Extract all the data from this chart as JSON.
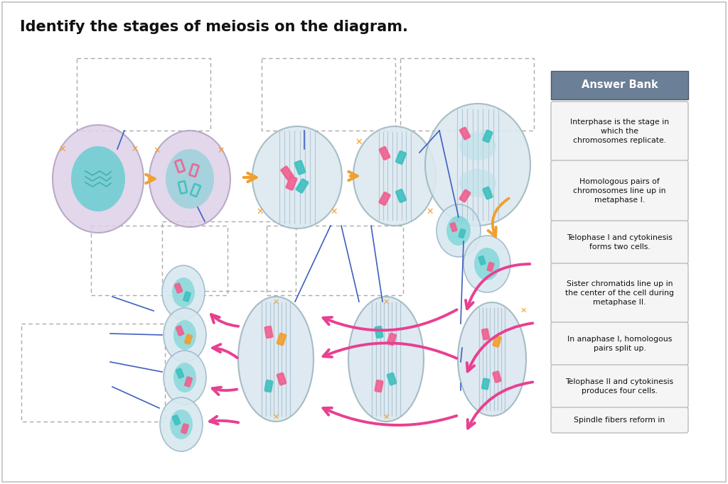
{
  "title": "Identify the stages of meiosis on the diagram.",
  "title_fontsize": 15,
  "bg_color": "#ffffff",
  "answer_bank_bg": "#6b7f96",
  "answer_bank_title": "Answer Bank",
  "answer_items": [
    "Interphase is the stage in\nwhich the\nchromosomes replicate.",
    "Homologous pairs of\nchromosomes line up in\nmetaphase I.",
    "Telophase I and cytokinesis\nforms two cells.",
    "Sister chromatids line up in\nthe center of the cell during\nmetaphase II.",
    "In anaphase I, homologous\npairs split up.",
    "Telophase II and cytokinesis\nproduces four cells.",
    "Spindle fibers reform in"
  ],
  "item_heights": [
    78,
    80,
    55,
    78,
    55,
    55,
    30
  ],
  "cell_lavender": "#ddd0e8",
  "cell_blue": "#dce8f0",
  "cell_outline_purple": "#b0a0c0",
  "cell_outline_blue": "#a0b8c0",
  "nucleus_teal": "#5ecece",
  "spindle_color": "#9ab8c8",
  "chr_pink": "#f06090",
  "chr_teal": "#40c0c0",
  "chr_orange": "#f0a030",
  "arrow_orange": "#f0a030",
  "arrow_pink": "#e84090",
  "blue_line": "#4060c0",
  "dashed_color": "#aaaaaa"
}
